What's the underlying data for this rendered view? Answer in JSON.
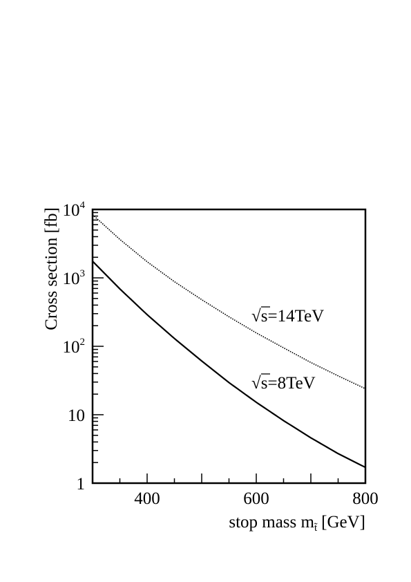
{
  "chart_data": {
    "type": "line",
    "title": "",
    "xlabel": "stop mass m",
    "xlabel_sub": "t̃",
    "xlabel_unit": "[GeV]",
    "ylabel": "Cross section [fb]",
    "xlim": [
      300,
      800
    ],
    "ylim": [
      1,
      10000
    ],
    "yscale": "log",
    "grid": false,
    "x_ticks": [
      400,
      600,
      800
    ],
    "y_ticks": [
      {
        "value": 1,
        "base": "1",
        "exp": ""
      },
      {
        "value": 10,
        "base": "10",
        "exp": ""
      },
      {
        "value": 100,
        "base": "10",
        "exp": "2"
      },
      {
        "value": 1000,
        "base": "10",
        "exp": "3"
      },
      {
        "value": 10000,
        "base": "10",
        "exp": "4"
      }
    ],
    "series": [
      {
        "style": "dotted",
        "color": "#000000",
        "x": [
          300,
          350,
          400,
          450,
          500,
          550,
          600,
          650,
          700,
          750,
          800
        ],
        "y": [
          8400,
          3650,
          1720,
          880,
          480,
          270,
          157,
          95,
          58,
          37,
          24
        ]
      },
      {
        "style": "solid",
        "color": "#000000",
        "x": [
          300,
          350,
          400,
          450,
          500,
          550,
          600,
          650,
          700,
          750,
          800
        ],
        "y": [
          1750,
          690,
          290,
          130,
          61,
          29.5,
          15.2,
          8.2,
          4.6,
          2.7,
          1.7
        ]
      }
    ],
    "annotations": [
      {
        "id": "anno14",
        "sqrt": "√",
        "text": "s=14TeV"
      },
      {
        "id": "anno8",
        "sqrt": "√",
        "text": "s=8TeV"
      }
    ]
  }
}
